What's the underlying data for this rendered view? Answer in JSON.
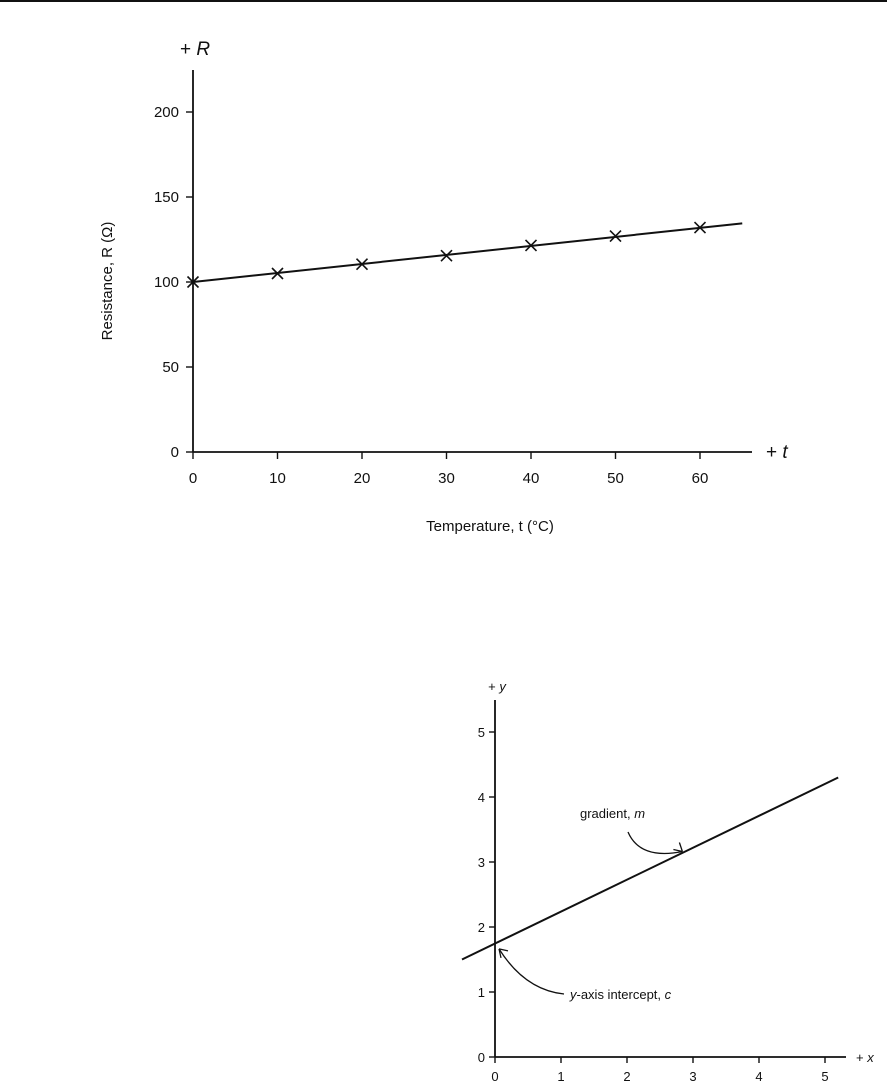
{
  "chart_data": [
    {
      "type": "line",
      "title": "",
      "xlabel": "Temperature, t (°C)",
      "ylabel": "Resistance, R (Ω)",
      "x_axis_end_label": "+ t",
      "y_axis_end_label": "+ R",
      "xlim": [
        0,
        65
      ],
      "ylim": [
        0,
        220
      ],
      "xticks": [
        0,
        10,
        20,
        30,
        40,
        50,
        60
      ],
      "yticks": [
        0,
        50,
        100,
        150,
        200
      ],
      "grid": false,
      "series": [
        {
          "x": [
            0,
            10,
            20,
            30,
            40,
            50,
            60
          ],
          "y": [
            100,
            105,
            110.5,
            115.5,
            121.5,
            127,
            132
          ],
          "marker": "x"
        }
      ],
      "fit_line": {
        "x": [
          0,
          65
        ],
        "y": [
          100,
          134.5
        ]
      }
    },
    {
      "type": "line",
      "title": "",
      "xlabel": "",
      "ylabel": "",
      "x_axis_end_label": "+ x",
      "y_axis_end_label": "+ y",
      "xlim": [
        0,
        5.3
      ],
      "ylim": [
        0,
        5.5
      ],
      "xticks": [
        0,
        1,
        2,
        3,
        4,
        5
      ],
      "yticks": [
        0,
        1,
        2,
        3,
        4,
        5
      ],
      "grid": false,
      "series": [
        {
          "x": [
            -0.5,
            5.2
          ],
          "y": [
            1.5,
            4.3
          ]
        }
      ],
      "annotations": [
        {
          "text": "gradient, m",
          "points_to": [
            2.9,
            3.1
          ]
        },
        {
          "text": "y-axis intercept, c",
          "points_to": [
            0,
            1.74
          ]
        }
      ]
    }
  ]
}
